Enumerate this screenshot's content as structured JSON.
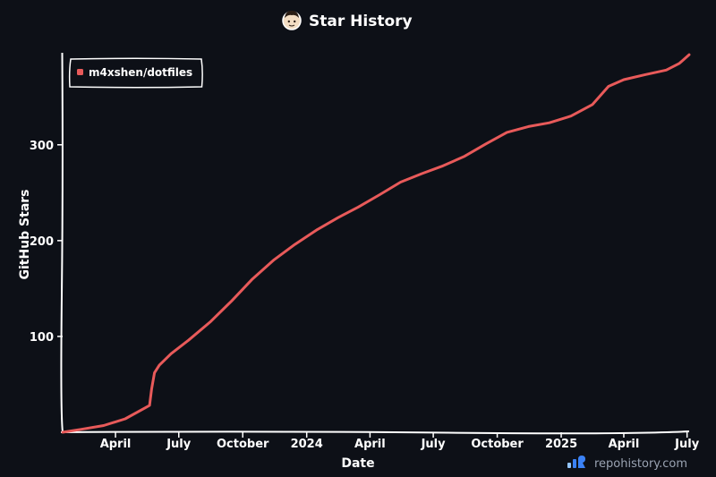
{
  "chart_data": {
    "type": "line",
    "title": "Star History",
    "xlabel": "Date",
    "ylabel": "GitHub Stars",
    "x_ticks": [
      {
        "label": "April",
        "date": "2023-04-01"
      },
      {
        "label": "July",
        "date": "2023-07-01"
      },
      {
        "label": "October",
        "date": "2023-10-01"
      },
      {
        "label": "2024",
        "date": "2024-01-01"
      },
      {
        "label": "April",
        "date": "2024-04-01"
      },
      {
        "label": "July",
        "date": "2024-07-01"
      },
      {
        "label": "October",
        "date": "2024-10-01"
      },
      {
        "label": "2025",
        "date": "2025-01-01"
      },
      {
        "label": "April",
        "date": "2025-04-01"
      },
      {
        "label": "July",
        "date": "2025-07-01"
      }
    ],
    "xlim": [
      "2023-01-15",
      "2025-07-04"
    ],
    "y_ticks": [
      100,
      200,
      300
    ],
    "ylim": [
      0,
      396
    ],
    "grid": false,
    "legend_position": "top-left",
    "series": [
      {
        "name": "m4xshen/dotfiles",
        "color": "#e85a5a",
        "points": [
          {
            "date": "2023-01-15",
            "stars": 0
          },
          {
            "date": "2023-02-10",
            "stars": 3
          },
          {
            "date": "2023-03-15",
            "stars": 7
          },
          {
            "date": "2023-04-15",
            "stars": 14
          },
          {
            "date": "2023-05-15",
            "stars": 26
          },
          {
            "date": "2023-05-20",
            "stars": 28
          },
          {
            "date": "2023-05-23",
            "stars": 45
          },
          {
            "date": "2023-05-27",
            "stars": 62
          },
          {
            "date": "2023-06-03",
            "stars": 70
          },
          {
            "date": "2023-06-20",
            "stars": 82
          },
          {
            "date": "2023-07-15",
            "stars": 96
          },
          {
            "date": "2023-08-15",
            "stars": 115
          },
          {
            "date": "2023-09-15",
            "stars": 137
          },
          {
            "date": "2023-10-15",
            "stars": 160
          },
          {
            "date": "2023-11-15",
            "stars": 180
          },
          {
            "date": "2023-12-15",
            "stars": 196
          },
          {
            "date": "2024-01-15",
            "stars": 211
          },
          {
            "date": "2024-02-15",
            "stars": 224
          },
          {
            "date": "2024-03-15",
            "stars": 235
          },
          {
            "date": "2024-04-15",
            "stars": 248
          },
          {
            "date": "2024-05-15",
            "stars": 261
          },
          {
            "date": "2024-06-15",
            "stars": 270
          },
          {
            "date": "2024-07-15",
            "stars": 278
          },
          {
            "date": "2024-08-15",
            "stars": 288
          },
          {
            "date": "2024-09-15",
            "stars": 301
          },
          {
            "date": "2024-10-15",
            "stars": 313
          },
          {
            "date": "2024-11-15",
            "stars": 319
          },
          {
            "date": "2024-12-15",
            "stars": 323
          },
          {
            "date": "2025-01-15",
            "stars": 330
          },
          {
            "date": "2025-02-15",
            "stars": 342
          },
          {
            "date": "2025-03-10",
            "stars": 361
          },
          {
            "date": "2025-04-01",
            "stars": 368
          },
          {
            "date": "2025-05-01",
            "stars": 373
          },
          {
            "date": "2025-06-01",
            "stars": 378
          },
          {
            "date": "2025-06-20",
            "stars": 385
          },
          {
            "date": "2025-07-04",
            "stars": 394
          }
        ]
      }
    ]
  },
  "watermark": {
    "text": "repohistory.com",
    "icon": "bar-chart-logo-icon",
    "icon_colors": [
      "#3b82f6",
      "#93c5fd",
      "#1d4ed8"
    ]
  },
  "title_icon": "avatar-face-icon",
  "colors": {
    "background": "#0d1017",
    "axis": "#ffffff",
    "text": "#ffffff",
    "legend_border": "#ffffff"
  }
}
